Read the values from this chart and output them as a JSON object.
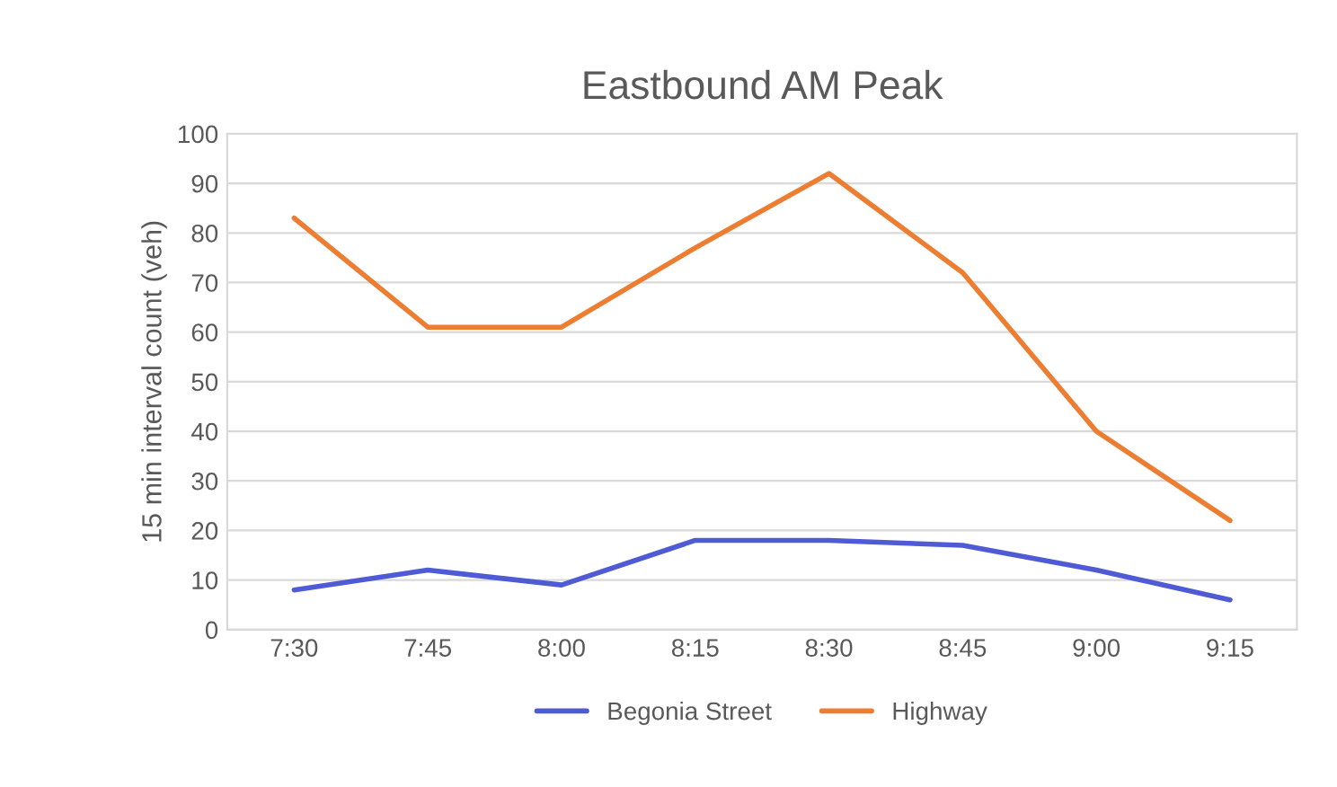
{
  "chart_data": {
    "type": "line",
    "title": "Eastbound AM Peak",
    "ylabel": "15 min interval count (veh)",
    "categories": [
      "7:30",
      "7:45",
      "8:00",
      "8:15",
      "8:30",
      "8:45",
      "9:00",
      "9:15"
    ],
    "series": [
      {
        "name": "Begonia Street",
        "color": "#4f5bd5",
        "values": [
          8,
          12,
          9,
          18,
          18,
          17,
          12,
          6
        ]
      },
      {
        "name": "Highway",
        "color": "#ed7d31",
        "values": [
          83,
          61,
          61,
          77,
          92,
          72,
          40,
          22
        ]
      }
    ],
    "ylim": [
      0,
      100
    ],
    "yticks": [
      0,
      10,
      20,
      30,
      40,
      50,
      60,
      70,
      80,
      90,
      100
    ],
    "grid": "y",
    "legend": "bottom"
  }
}
